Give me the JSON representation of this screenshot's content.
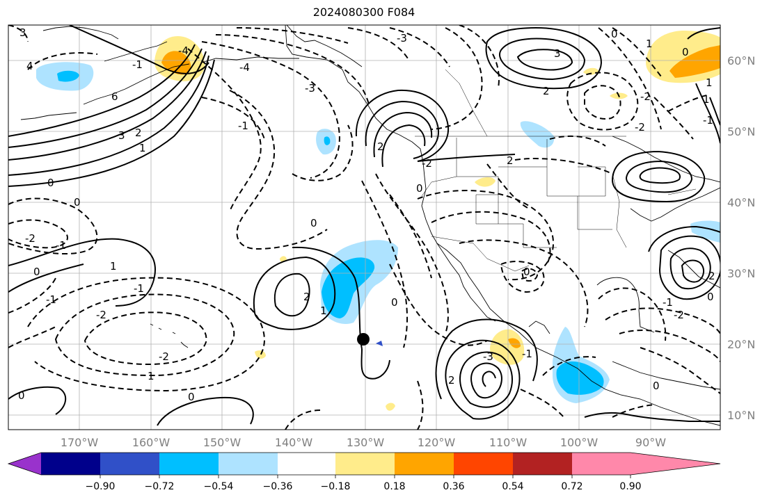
{
  "title": "2024080300 F084",
  "lon_labels": [
    "170°W",
    "160°W",
    "150°W",
    "140°W",
    "130°W",
    "120°W",
    "110°W",
    "100°W",
    "90°W"
  ],
  "lat_labels": [
    "60°N",
    "50°N",
    "40°N",
    "30°N",
    "20°N",
    "10°N"
  ],
  "colorbar": {
    "colors": [
      "#9932cc",
      "#00008b",
      "#3050c8",
      "#00bfff",
      "#aee3ff",
      "#ffffff",
      "#ffec8b",
      "#ffa500",
      "#ff4500",
      "#b22222",
      "#ff88aa"
    ],
    "ticks": [
      "−0.90",
      "−0.72",
      "−0.54",
      "−0.36",
      "−0.18",
      "0.18",
      "0.36",
      "0.54",
      "0.72",
      "0.90"
    ]
  },
  "contour_labels": {
    "c1": "3",
    "c2": "4",
    "c3": "6",
    "c4": "3",
    "c5": "2",
    "c6": "1",
    "c7": "0",
    "c8": "0",
    "c9": "-2",
    "c10": "-1",
    "c11": "0",
    "c12": "-1",
    "c13": "-2",
    "c14": "-2",
    "c15": "1",
    "c16": "0",
    "c17": "-3",
    "c18": "-3",
    "c19": "-4",
    "c20": "-1",
    "c21": "-4",
    "c22": "-1",
    "c23": "0",
    "c24": "1",
    "c25": "2",
    "c26": "2",
    "c27": "3",
    "c28": "2",
    "c29": "-2",
    "c30": "2",
    "c31": "0",
    "c32": "0",
    "c33": "1",
    "c34": "-2",
    "c35": "1",
    "c36": "0",
    "c37": "-1",
    "c38": "-2",
    "c39": "-2",
    "c40": "0",
    "c41": "0",
    "c42": "-3",
    "c43": "-1",
    "c44": "0",
    "c45": "0",
    "c46": "-1",
    "c47": "1",
    "c48": "2",
    "c49": "0",
    "c50": "1",
    "c51": "-1",
    "c52": "2"
  },
  "marker": "storm-center"
}
